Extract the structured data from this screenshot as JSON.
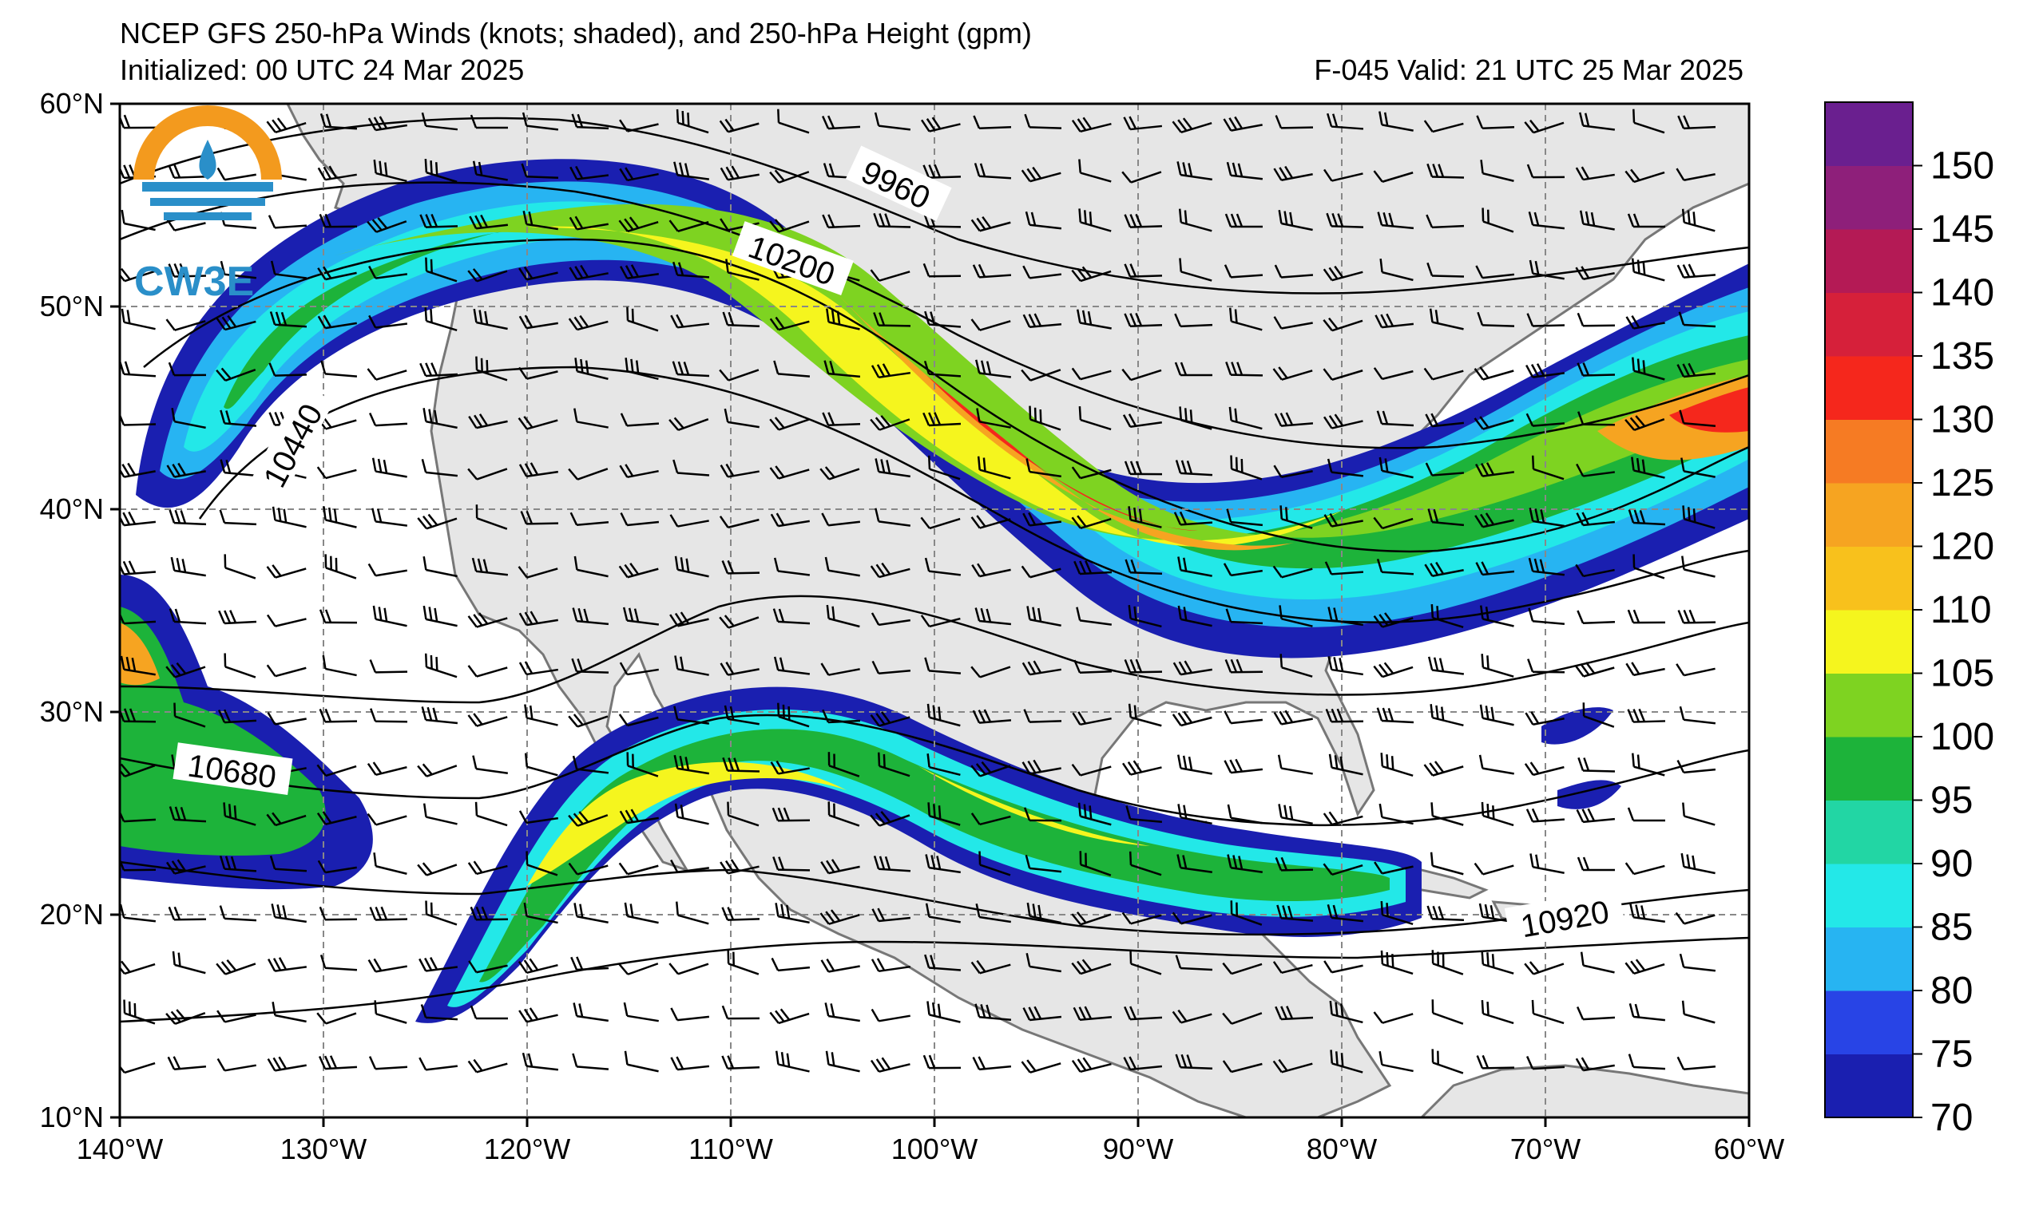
{
  "header": {
    "title": "NCEP GFS 250-hPa Winds (knots; shaded), and 250-hPa Height (gpm)",
    "initialized": "Initialized: 00 UTC 24 Mar 2025",
    "valid": "F-045  Valid: 21 UTC 25 Mar 2025"
  },
  "logo": {
    "text": "CW3E"
  },
  "map": {
    "lon_labels": [
      "140°W",
      "130°W",
      "120°W",
      "110°W",
      "100°W",
      "90°W",
      "80°W",
      "70°W",
      "60°W"
    ],
    "lat_labels": [
      "60°N",
      "50°N",
      "40°N",
      "30°N",
      "20°N",
      "10°N"
    ],
    "lon_range": [
      -140,
      -60
    ],
    "lat_range": [
      10,
      60
    ],
    "land_color": "#e6e6e6",
    "ocean_color": "#ffffff",
    "height_contour_labels": [
      "9960",
      "10200",
      "10440",
      "10680",
      "10920"
    ]
  },
  "colorbar": {
    "labels": [
      "150",
      "145",
      "140",
      "135",
      "130",
      "125",
      "120",
      "110",
      "105",
      "100",
      "95",
      "90",
      "85",
      "80",
      "75",
      "70"
    ],
    "colors": [
      "#1a1fb0",
      "#2844e6",
      "#27b4f2",
      "#23e8e8",
      "#22d6a4",
      "#1db33a",
      "#7ed321",
      "#f5f51e",
      "#f8c11c",
      "#f6a421",
      "#f67b23",
      "#f5271c",
      "#d6203a",
      "#b41a55",
      "#8e1f7a",
      "#6a1f8f"
    ]
  },
  "chart_data": {
    "type": "heatmap",
    "variable": "250-hPa wind speed (knots)",
    "levels": [
      70,
      75,
      80,
      85,
      90,
      95,
      100,
      105,
      110,
      115,
      120,
      125,
      130,
      135,
      140,
      145,
      150,
      155
    ],
    "jet_streaks": [
      {
        "region": "northern jet, 140°W–60°W",
        "max_knots": 135
      },
      {
        "region": "subtropical jet, 125°W–77°W",
        "max_knots": 115
      }
    ],
    "height_contours_gpm": [
      9960,
      10200,
      10440,
      10680,
      10920
    ]
  }
}
